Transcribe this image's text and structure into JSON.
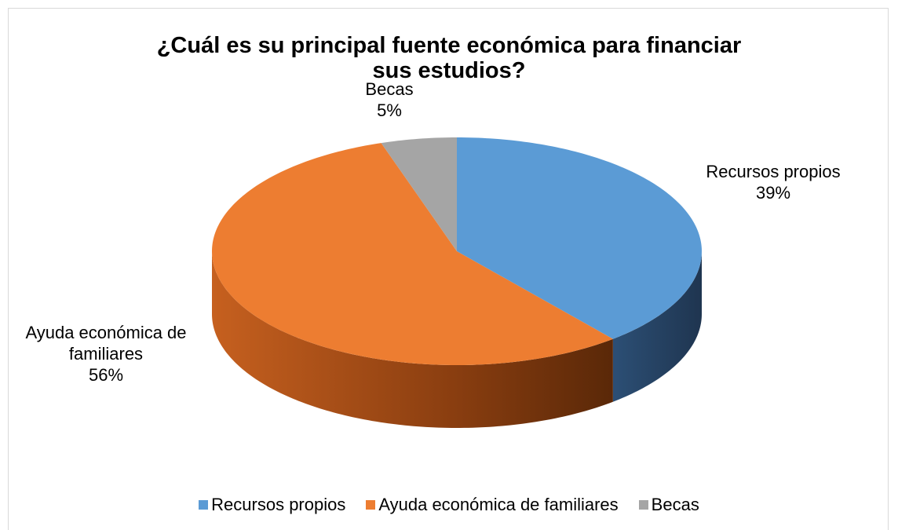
{
  "chart_data": {
    "type": "pie",
    "title": "¿Cuál es su principal fuente económica para financiar sus estudios?",
    "categories": [
      "Recursos propios",
      "Ayuda económica de familiares",
      "Becas"
    ],
    "values": [
      39,
      56,
      5
    ],
    "value_labels": [
      "39%",
      "56%",
      "5%"
    ],
    "colors": [
      "#5b9bd5",
      "#ed7d31",
      "#a5a5a5"
    ],
    "legend": "bottom"
  }
}
